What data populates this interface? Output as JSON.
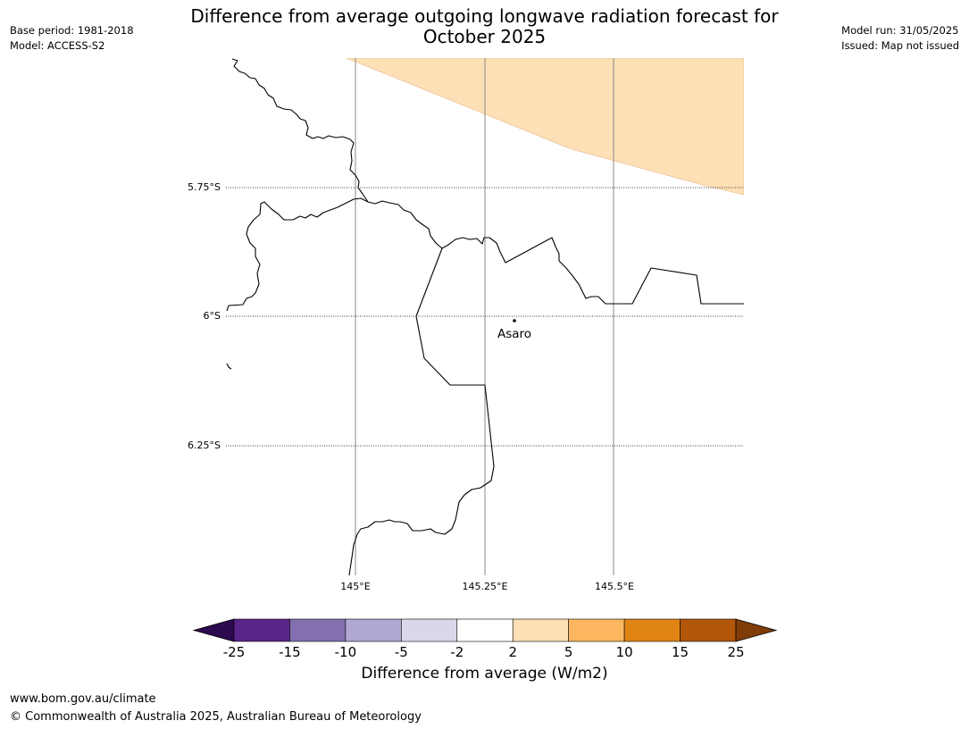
{
  "title_line1": "Difference from average outgoing longwave radiation forecast for",
  "title_line2": "October 2025",
  "meta_left": {
    "base_period": "Base period: 1981-2018",
    "model": "Model: ACCESS-S2"
  },
  "meta_right": {
    "model_run": "Model run: 31/05/2025",
    "issued": "Issued: Map not issued"
  },
  "map": {
    "lat_labels": [
      "5.75°S",
      "6°S",
      "6.25°S"
    ],
    "lon_labels": [
      "145°E",
      "145.25°E",
      "145.5°E"
    ],
    "place": {
      "name": "Asaro"
    },
    "anomaly_region_color": "#fde0b5"
  },
  "colorbar": {
    "ticks": [
      "-25",
      "-15",
      "-10",
      "-5",
      "-2",
      "2",
      "5",
      "10",
      "15",
      "25"
    ],
    "colors": [
      "#5a2588",
      "#8270b0",
      "#b0a7d2",
      "#d9d8ea",
      "#ffffff",
      "#fde0b5",
      "#fbb65f",
      "#e08515",
      "#b2570a"
    ],
    "under_color": "#2d0a4f",
    "over_color": "#7f3b08",
    "label": "Difference from average (W/m2)"
  },
  "footer": {
    "url": "www.bom.gov.au/climate",
    "copyright": "© Commonwealth of Australia 2025, Australian Bureau of Meteorology"
  }
}
